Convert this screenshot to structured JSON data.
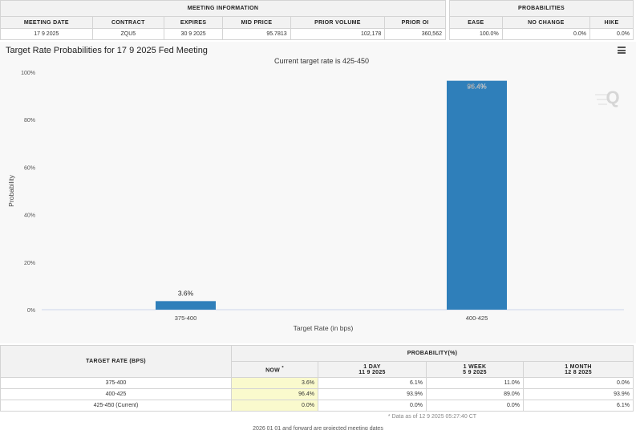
{
  "meeting_info": {
    "title": "MEETING INFORMATION",
    "headers": [
      "MEETING DATE",
      "CONTRACT",
      "EXPIRES",
      "MID PRICE",
      "PRIOR VOLUME",
      "PRIOR OI"
    ],
    "values": [
      "17 9 2025",
      "ZQU5",
      "30 9 2025",
      "95.7813",
      "102,178",
      "360,562"
    ]
  },
  "probabilities": {
    "title": "PROBABILITIES",
    "headers": [
      "EASE",
      "NO CHANGE",
      "HIKE"
    ],
    "values": [
      "100.0%",
      "0.0%",
      "0.0%"
    ]
  },
  "chart": {
    "title": "Target Rate Probabilities for 17 9 2025 Fed Meeting",
    "subtitle": "Current target rate is 425-450",
    "logo_letter": "Q"
  },
  "chart_data": {
    "type": "bar",
    "title": "Target Rate Probabilities for 17 9 2025 Fed Meeting",
    "subtitle": "Current target rate is 425-450",
    "categories": [
      "375-400",
      "400-425"
    ],
    "values": [
      3.6,
      96.4
    ],
    "data_labels": [
      "3.6%",
      "96.4%"
    ],
    "xlabel": "Target Rate (in bps)",
    "ylabel": "Probability",
    "ylim": [
      0,
      100
    ],
    "yticks": [
      0,
      20,
      40,
      60,
      80,
      100
    ],
    "ytick_labels": [
      "0%",
      "20%",
      "40%",
      "60%",
      "80%",
      "100%"
    ],
    "grid": false,
    "bar_color": "#2f7fba"
  },
  "bottom_table": {
    "target_header": "TARGET RATE (BPS)",
    "prob_header": "PROBABILITY(%)",
    "now_label": "NOW",
    "now_mark": "*",
    "col_headers": [
      {
        "label": "1 DAY",
        "date": "11 9 2025"
      },
      {
        "label": "1 WEEK",
        "date": "5 9 2025"
      },
      {
        "label": "1 MONTH",
        "date": "12 8 2025"
      }
    ],
    "rows": [
      {
        "rate": "375-400",
        "now": "3.6%",
        "d1": "6.1%",
        "w1": "11.0%",
        "m1": "0.0%"
      },
      {
        "rate": "400-425",
        "now": "96.4%",
        "d1": "93.9%",
        "w1": "89.0%",
        "m1": "93.9%"
      },
      {
        "rate": "425-450 (Current)",
        "now": "0.0%",
        "d1": "0.0%",
        "w1": "0.0%",
        "m1": "6.1%"
      }
    ],
    "note": "* Data as of 12 9 2025 05:27:40 CT"
  },
  "footer": "2026 01 01 and forward are projected meeting dates"
}
